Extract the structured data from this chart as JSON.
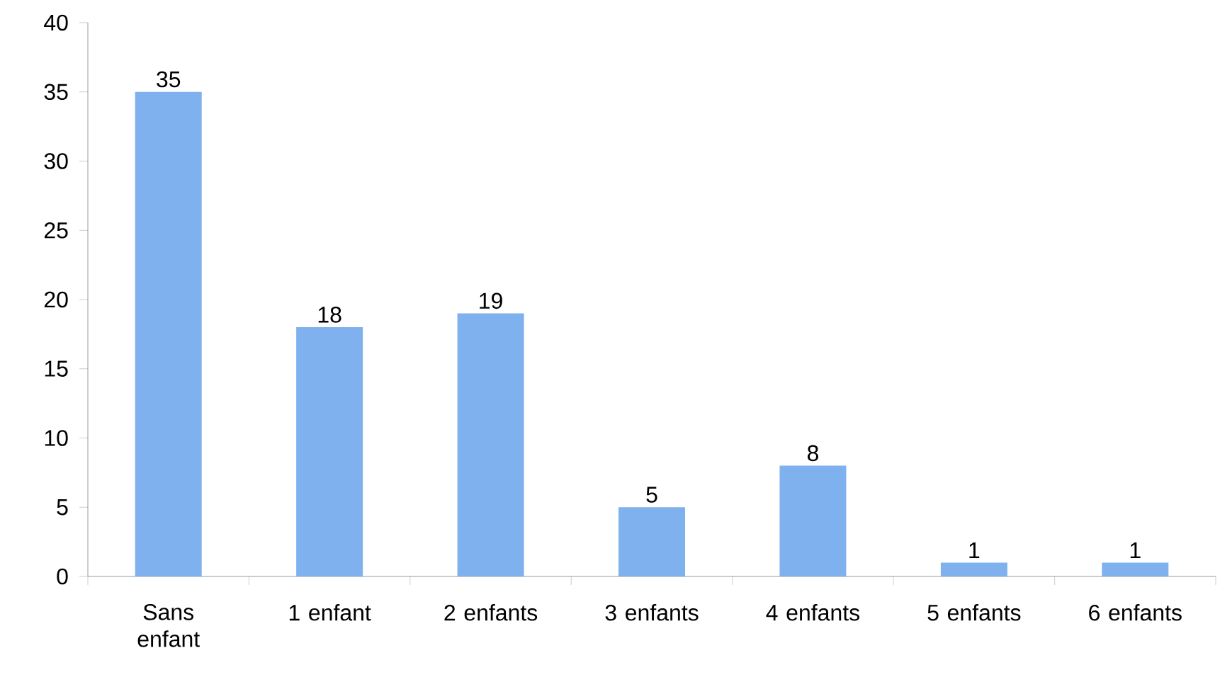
{
  "chart_data": {
    "type": "bar",
    "categories": [
      "Sans enfant",
      "1 enfant",
      "2 enfants",
      "3 enfants",
      "4 enfants",
      "5 enfants",
      "6 enfants"
    ],
    "values": [
      35,
      18,
      19,
      5,
      8,
      1,
      1
    ],
    "color": "#7fb1ee",
    "ylim": [
      0,
      40
    ],
    "yticks": [
      0,
      5,
      10,
      15,
      20,
      25,
      30,
      35,
      40
    ],
    "data_labels": true,
    "grid": false
  }
}
